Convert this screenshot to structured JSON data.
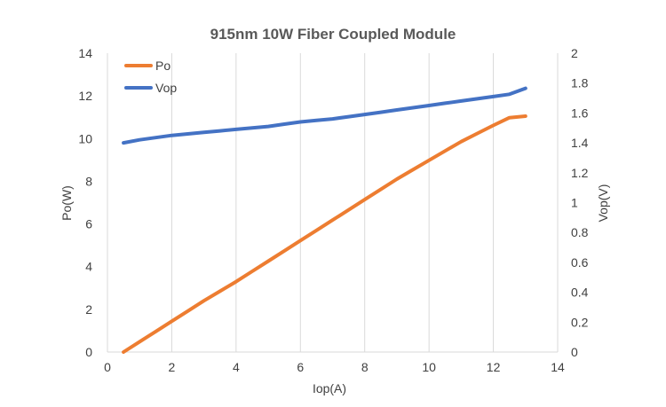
{
  "chart_data": {
    "type": "line",
    "title": "915nm 10W Fiber Coupled Module",
    "xlabel": "Iop(A)",
    "ylabel": "Po(W)",
    "y2label": "Vop(V)",
    "xlim": [
      0,
      14
    ],
    "ylim": [
      0,
      14
    ],
    "y2lim": [
      0,
      2
    ],
    "xticks": [
      "0",
      "2",
      "4",
      "6",
      "8",
      "10",
      "12",
      "14"
    ],
    "yticks": [
      "0",
      "2",
      "4",
      "6",
      "8",
      "10",
      "12",
      "14"
    ],
    "y2ticks": [
      "0",
      "0.2",
      "0.4",
      "0.6",
      "0.8",
      "1",
      "1.2",
      "1.4",
      "1.6",
      "1.8",
      "2"
    ],
    "grid": "vertical",
    "legend": "top-left",
    "series": [
      {
        "name": "Po",
        "axis": "left",
        "color": "#ed7d31",
        "x": [
          0.5,
          1,
          1.5,
          2,
          2.5,
          3,
          3.5,
          4,
          4.5,
          5,
          5.5,
          6,
          6.5,
          7,
          7.5,
          8,
          8.5,
          9,
          9.5,
          10,
          10.5,
          11,
          11.5,
          12,
          12.5,
          13
        ],
        "y": [
          0,
          0.48,
          0.96,
          1.44,
          1.92,
          2.4,
          2.85,
          3.3,
          3.78,
          4.26,
          4.74,
          5.22,
          5.7,
          6.18,
          6.66,
          7.14,
          7.62,
          8.1,
          8.54,
          8.98,
          9.42,
          9.86,
          10.24,
          10.62,
          10.98,
          11.05
        ]
      },
      {
        "name": "Vop",
        "axis": "right",
        "color": "#4472c4",
        "x": [
          0.5,
          1,
          1.5,
          2,
          2.5,
          3,
          3.5,
          4,
          4.5,
          5,
          5.5,
          6,
          6.5,
          7,
          7.5,
          8,
          8.5,
          9,
          9.5,
          10,
          10.5,
          11,
          11.5,
          12,
          12.5,
          13
        ],
        "y": [
          1.4,
          1.42,
          1.435,
          1.45,
          1.46,
          1.47,
          1.48,
          1.49,
          1.5,
          1.51,
          1.525,
          1.54,
          1.55,
          1.56,
          1.575,
          1.59,
          1.605,
          1.62,
          1.635,
          1.65,
          1.665,
          1.68,
          1.695,
          1.71,
          1.725,
          1.765
        ]
      }
    ]
  }
}
